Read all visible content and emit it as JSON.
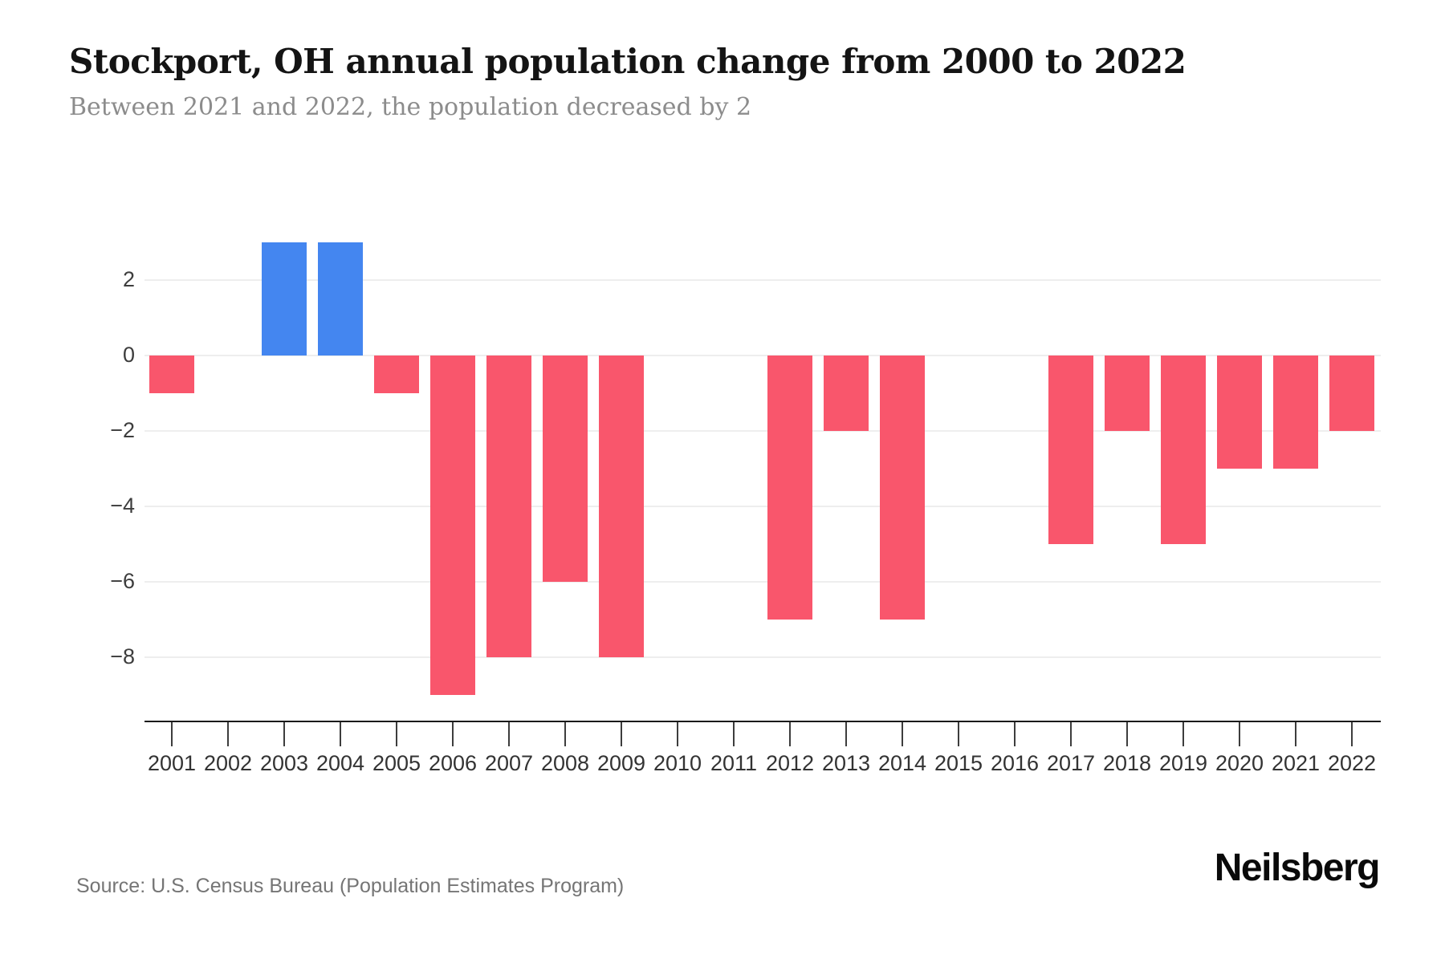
{
  "header": {
    "title": "Stockport, OH annual population change from 2000 to 2022",
    "subtitle": "Between 2021 and 2022, the population decreased by 2"
  },
  "footer": {
    "source": "Source: U.S. Census Bureau (Population Estimates Program)",
    "brand": "Neilsberg"
  },
  "colors": {
    "positive_bar": "#4486F0",
    "negative_bar": "#F9566C",
    "gridline": "#eeeeee",
    "axis_line": "#1a1a1a",
    "tick_label": "#333333",
    "title_text": "#141414",
    "subtitle_text": "#8c8c8c",
    "source_text": "#757575"
  },
  "chart_data": {
    "type": "bar",
    "title": "Stockport, OH annual population change from 2000 to 2022",
    "subtitle": "Between 2021 and 2022, the population decreased by 2",
    "categories": [
      "2001",
      "2002",
      "2003",
      "2004",
      "2005",
      "2006",
      "2007",
      "2008",
      "2009",
      "2010",
      "2011",
      "2012",
      "2013",
      "2014",
      "2015",
      "2016",
      "2017",
      "2018",
      "2019",
      "2020",
      "2021",
      "2022"
    ],
    "values": [
      -1,
      0,
      3,
      3,
      -1,
      -9,
      -8,
      -6,
      -8,
      0,
      0,
      -7,
      -2,
      -7,
      0,
      0,
      -5,
      -2,
      -5,
      -3,
      -3,
      -2
    ],
    "xlabel": "",
    "ylabel": "",
    "yticks": [
      2,
      0,
      -2,
      -4,
      -6,
      -8
    ],
    "ylim": [
      -9.7,
      3.9
    ],
    "grid": true,
    "legend": "none",
    "bar_color_rule": "negative values red, positive values blue"
  }
}
